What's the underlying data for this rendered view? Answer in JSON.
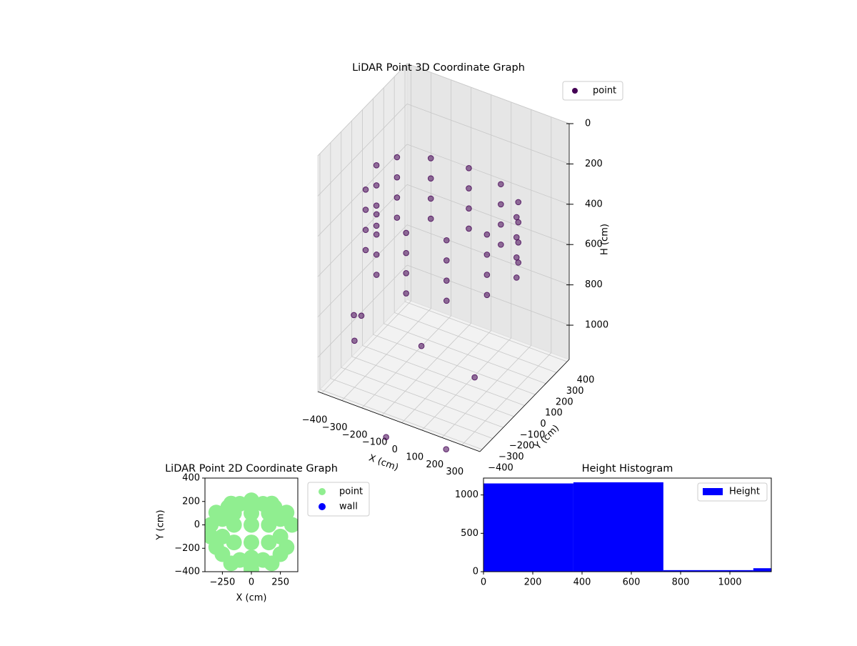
{
  "chart_data": [
    {
      "type": "scatter3d",
      "title": "LiDAR Point 3D Coordinate Graph",
      "xlabel": "X (cm)",
      "ylabel": "Y (cm)",
      "zlabel": "H (cm)",
      "xlim": [
        -420,
        390
      ],
      "ylim": [
        -420,
        420
      ],
      "zlim": [
        0,
        1170
      ],
      "zaxis_inverted": true,
      "legend": "upper right",
      "xticks": [
        {
          "value": -400,
          "label": "−400"
        },
        {
          "value": -300,
          "label": "−300"
        },
        {
          "value": -200,
          "label": "−200"
        },
        {
          "value": -100,
          "label": "−100"
        },
        0,
        100,
        200,
        300
      ],
      "yticks": [
        {
          "value": -400,
          "label": "−400"
        },
        {
          "value": -300,
          "label": "−300"
        },
        {
          "value": -200,
          "label": "−200"
        },
        {
          "value": -100,
          "label": "−100"
        },
        0,
        100,
        200,
        300,
        400
      ],
      "zticks": [
        0,
        200,
        400,
        600,
        800,
        1000
      ],
      "series": [
        {
          "name": "point",
          "color": "#440154",
          "x": [
            350,
            303,
            175,
            0,
            -175,
            -303,
            -350,
            -303,
            -175,
            0,
            175,
            303,
            350,
            303,
            175,
            0,
            -175,
            -303,
            -350,
            -303,
            -175,
            0,
            175,
            303,
            350,
            303,
            175,
            0,
            -175,
            -303,
            -350,
            -303,
            -175,
            0,
            175,
            303,
            350,
            303,
            175,
            0,
            -175,
            -303,
            -350,
            -303,
            -175,
            0,
            175,
            303,
            -250,
            -330,
            50,
            300,
            -380,
            200,
            -100
          ],
          "y": [
            0,
            105,
            182,
            210,
            182,
            105,
            0,
            -190,
            -329,
            -380,
            -329,
            -190,
            0,
            105,
            182,
            210,
            182,
            105,
            0,
            -190,
            -329,
            -380,
            -329,
            -190,
            0,
            105,
            182,
            210,
            182,
            105,
            0,
            -190,
            -329,
            -380,
            -329,
            -190,
            0,
            105,
            182,
            210,
            182,
            105,
            0,
            -190,
            -329,
            -380,
            -329,
            -190,
            -330,
            -250,
            -330,
            -300,
            -150,
            -380,
            -380
          ],
          "z": [
            250,
            250,
            250,
            250,
            250,
            250,
            250,
            250,
            250,
            250,
            250,
            250,
            350,
            350,
            350,
            350,
            350,
            350,
            350,
            350,
            350,
            350,
            350,
            350,
            450,
            450,
            450,
            450,
            450,
            450,
            450,
            450,
            450,
            450,
            450,
            450,
            550,
            550,
            550,
            550,
            550,
            550,
            550,
            550,
            550,
            550,
            550,
            550,
            780,
            850,
            820,
            900,
            1050,
            1250,
            1300
          ]
        }
      ]
    },
    {
      "type": "scatter",
      "title": "LiDAR Point 2D Coordinate Graph",
      "xlabel": "X (cm)",
      "ylabel": "Y (cm)",
      "xlim": [
        -400,
        400
      ],
      "ylim": [
        -400,
        400
      ],
      "legend": "outside right",
      "xticks": [
        {
          "value": -250,
          "label": "−250"
        },
        0,
        250
      ],
      "yticks": [
        {
          "value": -400,
          "label": "−400"
        },
        {
          "value": -200,
          "label": "−200"
        },
        0,
        200,
        400
      ],
      "series": [
        {
          "name": "point",
          "color": "#90ee90",
          "x": [
            350,
            303,
            175,
            0,
            -175,
            -303,
            -350,
            -303,
            -175,
            0,
            175,
            303,
            0,
            150,
            -150,
            0,
            150,
            -150,
            0,
            150,
            -150,
            250,
            -250,
            0,
            100,
            -100,
            250,
            -250,
            250,
            -250,
            100,
            -100,
            200,
            -200,
            -350,
            -10
          ],
          "y": [
            0,
            105,
            182,
            210,
            182,
            105,
            0,
            -190,
            -329,
            -380,
            -329,
            -190,
            0,
            0,
            0,
            100,
            100,
            100,
            -150,
            -150,
            -150,
            -250,
            -250,
            -280,
            -300,
            -300,
            50,
            50,
            -100,
            -100,
            180,
            180,
            150,
            150,
            -100,
            -330
          ]
        },
        {
          "name": "wall",
          "color": "#0000ff",
          "x": [],
          "y": []
        }
      ]
    },
    {
      "type": "histogram",
      "title": "Height Histogram",
      "xlim": [
        0,
        1168
      ],
      "ylim": [
        0,
        1220
      ],
      "xticks": [
        0,
        200,
        400,
        600,
        800,
        1000
      ],
      "yticks": [
        0,
        500,
        1000
      ],
      "legend": "upper right",
      "series": [
        {
          "name": "Height",
          "color": "#0000ff",
          "bins": [
            0,
            365,
            730,
            1095,
            1460
          ],
          "values": [
            1150,
            1165,
            20,
            45
          ]
        }
      ]
    }
  ]
}
